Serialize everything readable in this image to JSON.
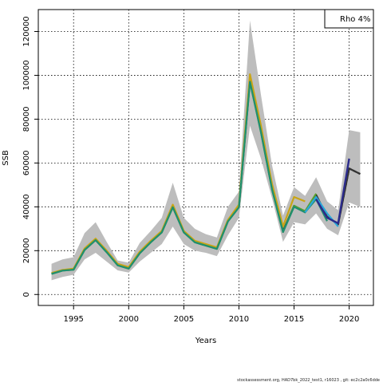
{
  "chart_data": {
    "type": "line",
    "title": "",
    "xlabel": "Years",
    "ylabel": "SSB",
    "xlim": [
      1991.8,
      2022.2
    ],
    "ylim": [
      -5000,
      130000
    ],
    "x_ticks": [
      1995,
      2000,
      2005,
      2010,
      2015,
      2020
    ],
    "y_ticks": [
      0,
      20000,
      40000,
      60000,
      80000,
      100000,
      120000
    ],
    "grid": true,
    "legend": {
      "placement": "top-right",
      "text": "Rho 4%"
    },
    "footer": "stockassessment.org, HAD7bk_2022_test1, r16023 , git: ec2c2a0c6dde",
    "band": {
      "years": [
        1993,
        1994,
        1995,
        1996,
        1997,
        1998,
        1999,
        2000,
        2001,
        2002,
        2003,
        2004,
        2005,
        2006,
        2007,
        2008,
        2009,
        2010,
        2011,
        2012,
        2013,
        2014,
        2015,
        2016,
        2017,
        2018,
        2019,
        2020,
        2021
      ],
      "lower": [
        6500,
        8000,
        9000,
        16000,
        19000,
        15000,
        11000,
        10000,
        15000,
        19000,
        23000,
        31000,
        23000,
        20000,
        19000,
        17500,
        27000,
        35000,
        77000,
        62000,
        44000,
        24000,
        33000,
        32000,
        37000,
        30000,
        27000,
        42000,
        40000
      ],
      "upper": [
        14000,
        16000,
        17000,
        28000,
        33000,
        24000,
        15500,
        14500,
        23500,
        29000,
        35000,
        51000,
        35000,
        30000,
        27500,
        26000,
        40000,
        47000,
        125000,
        91000,
        59000,
        36000,
        49000,
        45000,
        53500,
        42500,
        38500,
        75000,
        74000
      ]
    },
    "series": [
      {
        "color": "#333333",
        "width": 2.2,
        "dash": "none",
        "x": [
          1993,
          1994,
          1995,
          1996,
          1997,
          1998,
          1999,
          2000,
          2001,
          2002,
          2003,
          2004,
          2005,
          2006,
          2007,
          2008,
          2009,
          2010,
          2011,
          2012,
          2013,
          2014,
          2015,
          2016,
          2017,
          2018,
          2019,
          2020,
          2021
        ],
        "y": [
          9500,
          11000,
          11500,
          20500,
          25000,
          19500,
          13500,
          12000,
          19000,
          24000,
          28500,
          40000,
          28500,
          24000,
          22500,
          21000,
          33500,
          40000,
          98000,
          75000,
          49000,
          29000,
          40500,
          37500,
          45500,
          35500,
          32000,
          57500,
          55000
        ]
      },
      {
        "color": "#333333",
        "width": 2.2,
        "dash": "4,3",
        "x": [
          2019,
          2020,
          2021
        ],
        "y": [
          32000,
          57500,
          55000
        ]
      },
      {
        "color": "#c9a516",
        "width": 2.2,
        "dash": "none",
        "x": [
          1993,
          1994,
          1995,
          1996,
          1997,
          1998,
          1999,
          2000,
          2001,
          2002,
          2003,
          2004,
          2005,
          2006,
          2007,
          2008,
          2009,
          2010,
          2011,
          2012,
          2013,
          2014,
          2015,
          2016
        ],
        "y": [
          9800,
          11200,
          11800,
          21000,
          25500,
          20000,
          14000,
          12500,
          19500,
          24500,
          29000,
          41000,
          29000,
          24500,
          23000,
          21500,
          34000,
          41000,
          100500,
          77000,
          50500,
          31000,
          44500,
          42500
        ]
      },
      {
        "color": "#5aa02c",
        "width": 2.2,
        "dash": "none",
        "x": [
          1993,
          1994,
          1995,
          1996,
          1997,
          1998,
          1999,
          2000,
          2001,
          2002,
          2003,
          2004,
          2005,
          2006,
          2007,
          2008,
          2009,
          2010,
          2011,
          2012,
          2013,
          2014,
          2015,
          2016,
          2017
        ],
        "y": [
          9400,
          10900,
          11300,
          20300,
          24800,
          19300,
          13300,
          11800,
          18800,
          23800,
          28300,
          39800,
          28300,
          23800,
          22300,
          20800,
          33300,
          39800,
          97000,
          74000,
          48000,
          28500,
          40500,
          38000,
          46000
        ]
      },
      {
        "color": "#1f8f6f",
        "width": 2.2,
        "dash": "none",
        "x": [
          1993,
          1994,
          1995,
          1996,
          1997,
          1998,
          1999,
          2000,
          2001,
          2002,
          2003,
          2004,
          2005,
          2006,
          2007,
          2008,
          2009,
          2010,
          2011,
          2012,
          2013,
          2014,
          2015,
          2016,
          2017,
          2018
        ],
        "y": [
          9400,
          10900,
          11300,
          20300,
          24800,
          19300,
          13300,
          11800,
          18800,
          23800,
          28300,
          39800,
          28300,
          23800,
          22300,
          20800,
          33300,
          39800,
          97000,
          74000,
          48000,
          28500,
          40000,
          37500,
          43500,
          33500
        ]
      },
      {
        "color": "#2aa7d9",
        "width": 2.2,
        "dash": "none",
        "x": [
          2016,
          2017,
          2018,
          2019
        ],
        "y": [
          37500,
          44500,
          37000,
          31000
        ]
      },
      {
        "color": "#2b2b8c",
        "width": 2.4,
        "dash": "none",
        "x": [
          2017,
          2018,
          2019,
          2020
        ],
        "y": [
          43500,
          35000,
          32500,
          62000
        ]
      }
    ]
  }
}
